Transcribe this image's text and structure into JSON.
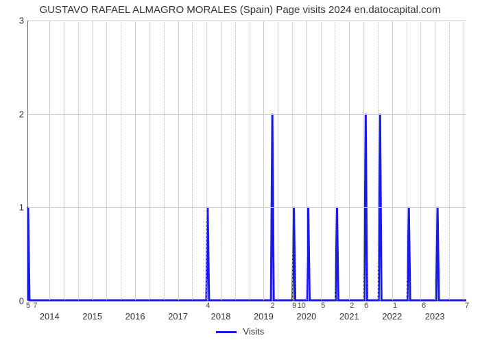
{
  "title": "GUSTAVO RAFAEL ALMAGRO MORALES (Spain) Page visits 2024 en.datocapital.com",
  "chart": {
    "type": "line",
    "series_name": "Visits",
    "line_color": "#1a1ae6",
    "line_width": 3,
    "background_color": "#ffffff",
    "grid_color": "#cccccc",
    "dotted_grid_color": "#bbbbbb",
    "plot_border_color": "#666666",
    "title_fontsize": 15,
    "label_fontsize": 13,
    "tick_fontsize": 11,
    "y": {
      "min": 0,
      "max": 3,
      "ticks": [
        0,
        1,
        2,
        3
      ]
    },
    "x": {
      "years": [
        2014,
        2015,
        2016,
        2017,
        2018,
        2019,
        2020,
        2021,
        2022,
        2023
      ],
      "year_start": 2013.5,
      "year_end": 2023.75,
      "dots_per_year": 3
    },
    "values": [
      1,
      0,
      0,
      0,
      0,
      0,
      0,
      0,
      0,
      0,
      0,
      0,
      0,
      0,
      0,
      0,
      0,
      0,
      0,
      0,
      0,
      0,
      0,
      0,
      0,
      1,
      0,
      0,
      0,
      0,
      0,
      0,
      0,
      0,
      2,
      0,
      0,
      1,
      0,
      1,
      0,
      0,
      0,
      1,
      0,
      0,
      0,
      2,
      0,
      2,
      0,
      0,
      0,
      1,
      0,
      0,
      0,
      1,
      0,
      0,
      0,
      0
    ],
    "baseline_tick_labels": [
      {
        "idx": 0,
        "text": "5"
      },
      {
        "idx": 1,
        "text": "7"
      },
      {
        "idx": 25,
        "text": "4"
      },
      {
        "idx": 34,
        "text": "2"
      },
      {
        "idx": 37,
        "text": "9"
      },
      {
        "idx": 38,
        "text": "10"
      },
      {
        "idx": 41,
        "text": "5"
      },
      {
        "idx": 45,
        "text": "2"
      },
      {
        "idx": 47,
        "text": "6"
      },
      {
        "idx": 51,
        "text": "1"
      },
      {
        "idx": 55,
        "text": "6"
      },
      {
        "idx": 61,
        "text": "7"
      }
    ],
    "legend": {
      "label": "Visits",
      "position": "bottom-center"
    }
  }
}
